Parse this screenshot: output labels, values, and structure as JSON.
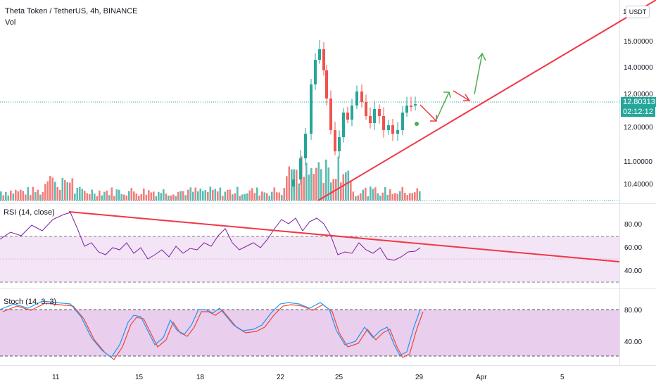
{
  "header": {
    "symbol": "Theta Token / TetherUS, 4h, BINANCE",
    "volume_label": "Vol"
  },
  "price_axis": {
    "currency": "USDT",
    "top_partial": "1",
    "ticks": [
      "15.00000",
      "14.00000",
      "12.00000",
      "11.00000",
      "10.40000"
    ],
    "upper_partial": "12.00000",
    "last_price": "12.80313",
    "countdown": "02:12:12",
    "last_price_color": "#26a69a"
  },
  "rsi": {
    "title": "RSI (14, close)",
    "ticks": [
      "80.00",
      "60.00",
      "40.00"
    ],
    "line_color": "#7b1fa2",
    "band_color": "#f3e5f5"
  },
  "stoch": {
    "title": "Stoch (14, 3, 3)",
    "ticks": [
      "80.00",
      "40.00"
    ],
    "k_color": "#2196f3",
    "d_color": "#f44336",
    "band_color": "#e1bee7"
  },
  "time_axis": {
    "ticks": [
      "11",
      "15",
      "18",
      "22",
      "25",
      "29",
      "Apr",
      "5"
    ]
  },
  "colors": {
    "up": "#26a69a",
    "down": "#ef5350",
    "trendline": "#f23645",
    "arrow_up": "#4caf50",
    "arrow_down": "#f23645"
  }
}
